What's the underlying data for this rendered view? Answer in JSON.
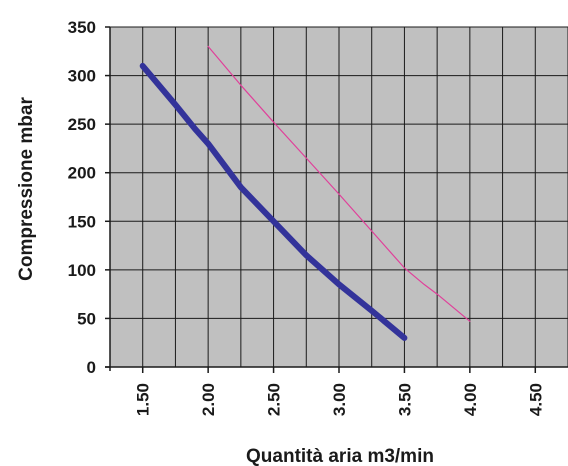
{
  "chart_data": {
    "type": "line",
    "title": "",
    "xlabel": "Quantità aria m3/min",
    "ylabel": "Compressione mbar",
    "xlim": [
      1.25,
      4.75
    ],
    "ylim": [
      0,
      350
    ],
    "x_ticks": [
      "1.50",
      "2.00",
      "2.50",
      "3.00",
      "3.50",
      "4.00",
      "4.50"
    ],
    "y_ticks": [
      "0",
      "50",
      "100",
      "150",
      "200",
      "250",
      "300",
      "350"
    ],
    "grid": true,
    "background": "#c0c0c0",
    "series": [
      {
        "color": "#33339a",
        "style": "thick",
        "points": [
          [
            1.5,
            310
          ],
          [
            1.75,
            270
          ],
          [
            1.9,
            245
          ],
          [
            2.0,
            230
          ],
          [
            2.25,
            185
          ],
          [
            2.5,
            150
          ],
          [
            2.75,
            115
          ],
          [
            3.0,
            85
          ],
          [
            3.25,
            58
          ],
          [
            3.5,
            30
          ]
        ]
      },
      {
        "color": "#e0409a",
        "style": "thin",
        "points": [
          [
            2.0,
            330
          ],
          [
            2.25,
            290
          ],
          [
            2.5,
            252
          ],
          [
            2.75,
            215
          ],
          [
            3.0,
            178
          ],
          [
            3.25,
            140
          ],
          [
            3.5,
            102
          ],
          [
            3.65,
            85
          ],
          [
            3.75,
            75
          ],
          [
            4.0,
            47
          ]
        ]
      }
    ]
  }
}
